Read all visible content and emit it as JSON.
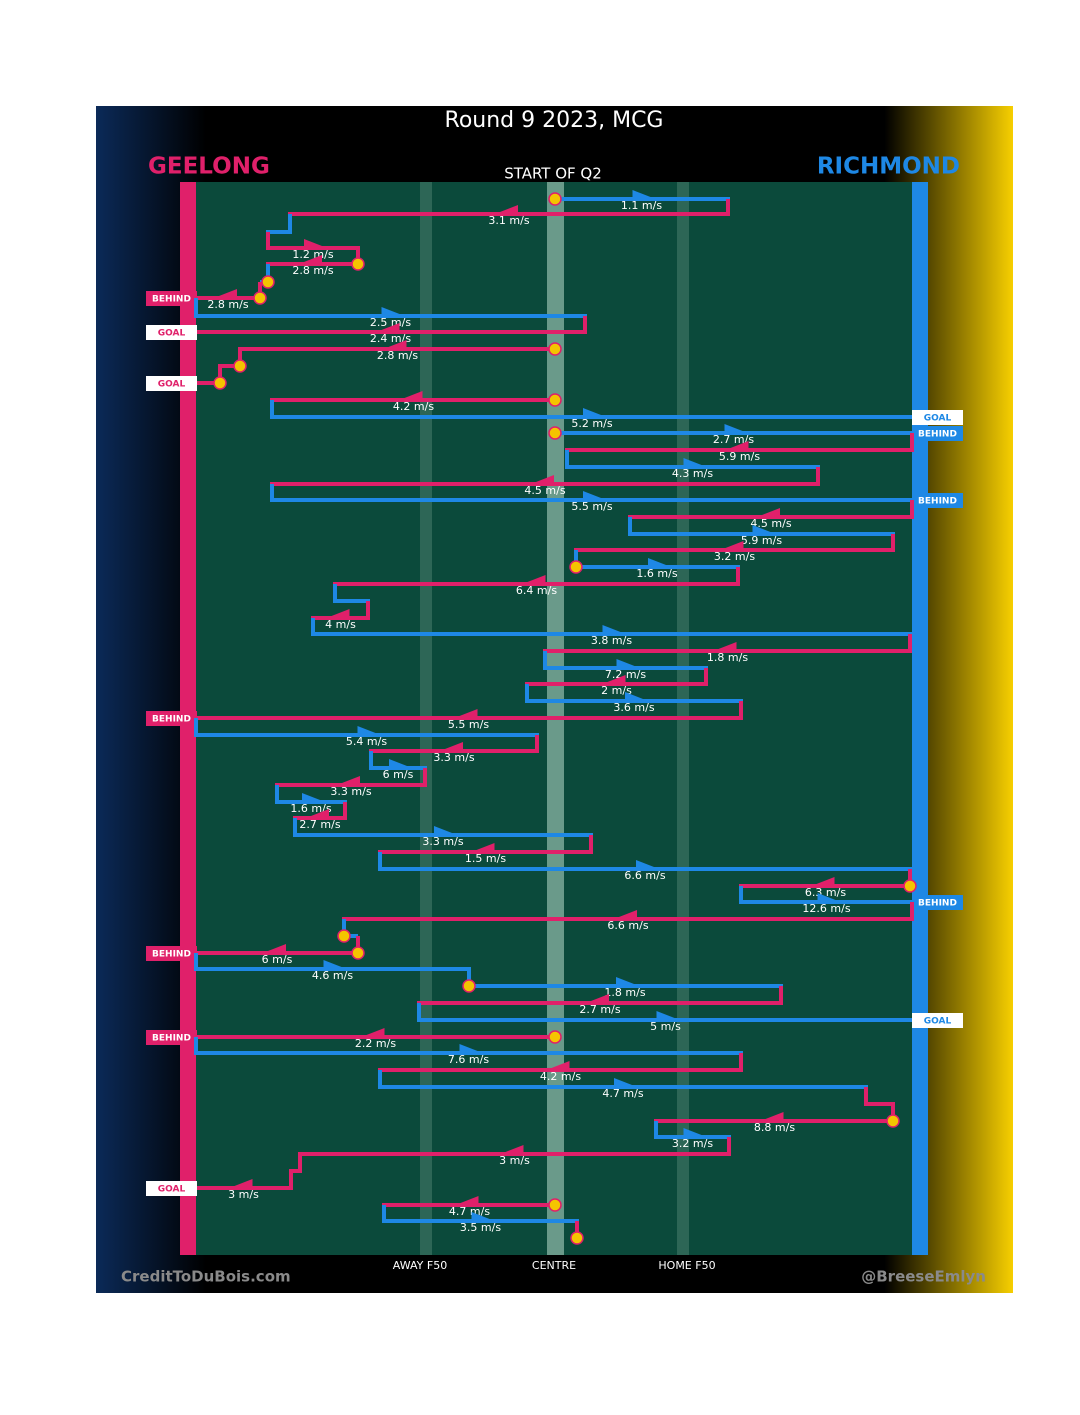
{
  "header": {
    "title": "Round 9 2023, MCG",
    "home_team": "GEELONG",
    "away_team": "RICHMOND",
    "subtitle": "START OF Q2"
  },
  "field_labels": [
    "AWAY F50",
    "CENTRE",
    "HOME F50"
  ],
  "credits": {
    "left": "CreditToDuBois.com",
    "right": "@BreeseEmlyn"
  },
  "speeds": [
    "1.1 m/s",
    "3.1 m/s",
    "1.2 m/s",
    "2.8 m/s",
    "2.8 m/s",
    "2.5 m/s",
    "2.4 m/s",
    "2.8 m/s",
    "4.2 m/s",
    "5.2 m/s",
    "2.7 m/s",
    "5.9 m/s",
    "4.3 m/s",
    "4.5 m/s",
    "5.5 m/s",
    "4.5 m/s",
    "5.9 m/s",
    "3.2 m/s",
    "1.6 m/s",
    "6.4 m/s",
    "4 m/s",
    "3.8 m/s",
    "1.8 m/s",
    "7.2 m/s",
    "2 m/s",
    "3.6 m/s",
    "5.5 m/s",
    "5.4 m/s",
    "3.3 m/s",
    "6 m/s",
    "3.3 m/s",
    "1.6 m/s",
    "2.7 m/s",
    "3.3 m/s",
    "1.5 m/s",
    "6.6 m/s",
    "6.3 m/s",
    "12.6 m/s",
    "6.6 m/s",
    "6 m/s",
    "4.6 m/s",
    "1.8 m/s",
    "2.7 m/s",
    "5 m/s",
    "2.2 m/s",
    "7.6 m/s",
    "4.2 m/s",
    "4.7 m/s",
    "8.8 m/s",
    "3.2 m/s",
    "3 m/s",
    "3 m/s",
    "4.7 m/s",
    "3.5 m/s"
  ],
  "outcomes": [
    "BEHIND",
    "GOAL",
    "GOAL",
    "GOAL",
    "BEHIND",
    "BEHIND",
    "BEHIND",
    "BEHIND",
    "BEHIND",
    "GOAL",
    "BEHIND",
    "GOAL"
  ]
}
